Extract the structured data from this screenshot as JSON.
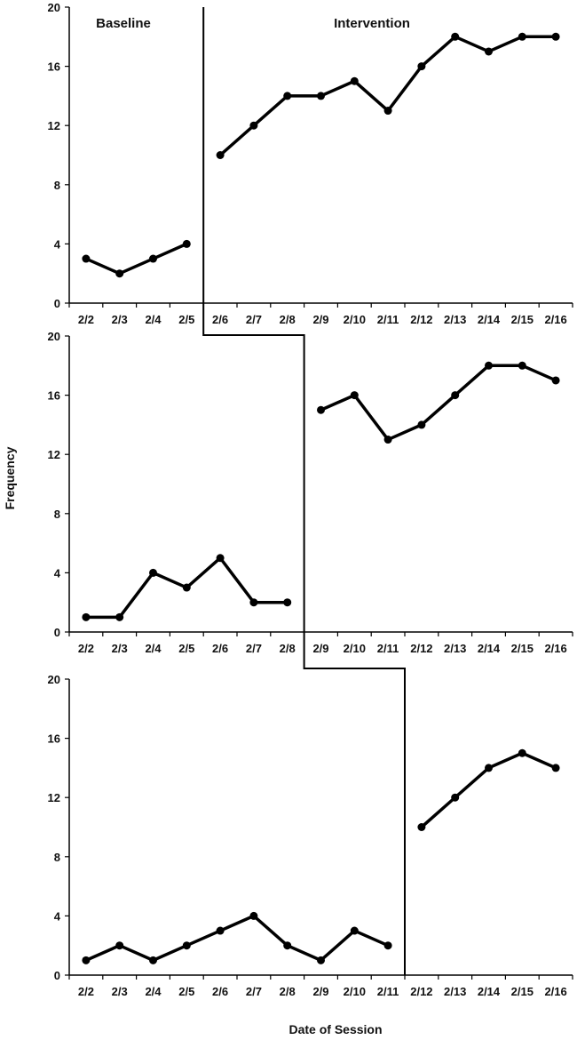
{
  "chart_data": {
    "type": "line",
    "ylabel": "Frequency",
    "xlabel": "Date of Session",
    "ylim": [
      0,
      20
    ],
    "yticks": [
      0,
      4,
      8,
      12,
      16,
      20
    ],
    "grid": false,
    "phases": [
      "Baseline",
      "Intervention"
    ],
    "categories": [
      "2/2",
      "2/3",
      "2/4",
      "2/5",
      "2/6",
      "2/7",
      "2/8",
      "2/9",
      "2/10",
      "2/11",
      "2/12",
      "2/13",
      "2/14",
      "2/15",
      "2/16"
    ],
    "panels": [
      {
        "baseline": [
          3,
          2,
          3,
          4
        ],
        "intervention": [
          10,
          12,
          14,
          14,
          15,
          13,
          16,
          18,
          17,
          18,
          18
        ]
      },
      {
        "baseline": [
          1,
          1,
          4,
          3,
          5,
          2,
          2
        ],
        "intervention": [
          15,
          16,
          13,
          14,
          16,
          18,
          18,
          17
        ]
      },
      {
        "baseline": [
          1,
          2,
          1,
          2,
          3,
          4,
          2,
          1,
          3,
          2
        ],
        "intervention": [
          10,
          12,
          14,
          15,
          14
        ]
      }
    ]
  }
}
